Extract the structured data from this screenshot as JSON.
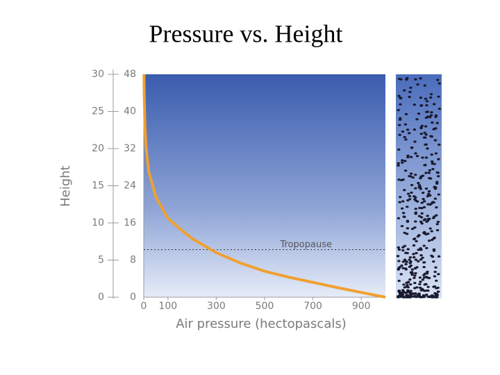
{
  "chart_data": {
    "type": "line",
    "title": "Pressure vs. Height",
    "x_label": "Air pressure (hectopascals)",
    "y_label": "Height",
    "x": [
      1000,
      800,
      600,
      500,
      400,
      300,
      200,
      150,
      100,
      50,
      20,
      10,
      5,
      2,
      1
    ],
    "series": [
      {
        "color": "#f0a030",
        "values": [
          0,
          1.3,
          2.7,
          3.5,
          4.6,
          6.0,
          7.9,
          9.2,
          10.6,
          13.5,
          17,
          20,
          23,
          27,
          30
        ]
      }
    ],
    "xlim": [
      0,
      1000
    ],
    "xticks": [
      0,
      100,
      300,
      500,
      700,
      900
    ],
    "ylim": [
      0,
      30
    ],
    "yticks": [
      0,
      5,
      10,
      15,
      20,
      25,
      30
    ],
    "y2lim": [
      0,
      48
    ],
    "y2ticks": [
      0,
      8,
      16,
      24,
      32,
      40,
      48
    ],
    "annotations": [
      {
        "text": "Tropopause",
        "value": 6.4
      }
    ]
  }
}
